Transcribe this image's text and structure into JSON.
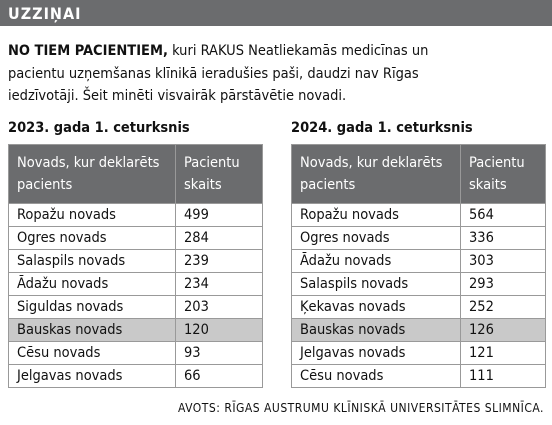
{
  "header": {
    "title": "UZZIŅAI"
  },
  "intro": {
    "lead": "NO TIEM PACIENTIEM,",
    "text": "kuri RAKUS Neatliekamās medicīnas un pacientu uzņemšanas klīnikā ieradušies paši, daudzi nav Rīgas iedzīvotāji. Šeit minēti visvairāk pārstāvētie novadi."
  },
  "tables": [
    {
      "title": "2023. gada 1. ceturksnis",
      "columns": [
        "Novads, kur deklarēts pacients",
        "Pacientu skaits"
      ],
      "rows": [
        [
          "Ropažu novads",
          499
        ],
        [
          "Ogres novads",
          284
        ],
        [
          "Salaspils novads",
          239
        ],
        [
          "Ādažu novads",
          234
        ],
        [
          "Siguldas novads",
          203
        ],
        [
          "Bauskas novads",
          120
        ],
        [
          "Cēsu novads",
          93
        ],
        [
          "Jelgavas novads",
          66
        ]
      ]
    },
    {
      "title": "2024. gada 1. ceturksnis",
      "columns": [
        "Novads, kur deklarēts pacients",
        "Pacientu skaits"
      ],
      "rows": [
        [
          "Ropažu novads",
          564
        ],
        [
          "Ogres novads",
          336
        ],
        [
          "Ādažu novads",
          303
        ],
        [
          "Salaspils novads",
          293
        ],
        [
          "Ķekavas novads",
          252
        ],
        [
          "Bauskas novads",
          126
        ],
        [
          "Jelgavas novads",
          121
        ],
        [
          "Cēsu novads",
          111
        ]
      ]
    }
  ],
  "source": "AVOTS: RĪGAS AUSTRUMU KLĪNISKĀ UNIVERSITĀTES SLIMNĪCA."
}
